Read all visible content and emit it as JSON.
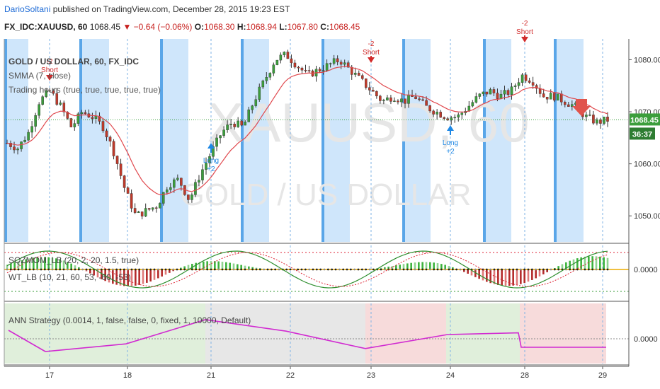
{
  "header": {
    "author": "DarioSoltani",
    "published": "published on TradingView.com, December 28, 2015 19:23 EST",
    "symbol": "FX_IDC:XAUUSD, 60",
    "last": "1068.45",
    "change": "−0.64 (−0.06%)",
    "o_label": "O:",
    "o": "1068.30",
    "h_label": "H:",
    "h": "1068.94",
    "l_label": "L:",
    "l": "1067.80",
    "c_label": "C:",
    "c": "1068.45"
  },
  "watermark": {
    "symbol": "XAUUSD, 60",
    "name": "GOLD / US DOLLAR"
  },
  "colors": {
    "up": "#3c9e3c",
    "down": "#c03a2b",
    "smma": "#e0484d",
    "session": "#cfe6fb",
    "session_edge": "#5aa6e8",
    "ann_line": "#d12bd1",
    "short": "#d12a2a",
    "long": "#1e88e5"
  },
  "chart_data": [
    {
      "type": "candlestick",
      "title": "GOLD / US DOLLAR, 60, FX_IDC",
      "legend": [
        "SMMA (7, close)",
        "Trading hours (true, true, true, true, true)"
      ],
      "price_tag": "1068.45",
      "timer_tag": "36:37",
      "x_ticks": [
        "17",
        "18",
        "21",
        "22",
        "23",
        "24",
        "28",
        "29"
      ],
      "y_ticks": [
        "1080.00",
        "1070.00",
        "1060.00",
        "1050.00"
      ],
      "ylim": [
        1045,
        1084
      ],
      "ohlc_path": [
        1064,
        1063,
        1066,
        1072,
        1074,
        1071,
        1067,
        1070,
        1069,
        1067,
        1062,
        1055,
        1050,
        1051,
        1052,
        1056,
        1057,
        1053,
        1058,
        1062,
        1066,
        1068,
        1067,
        1072,
        1076,
        1080,
        1081,
        1079,
        1077,
        1078,
        1079,
        1080,
        1078,
        1076,
        1074,
        1072,
        1073,
        1072,
        1073,
        1071,
        1070,
        1069,
        1069,
        1071,
        1073,
        1074,
        1073,
        1074,
        1077,
        1076,
        1073,
        1073,
        1072,
        1071,
        1069,
        1068,
        1068.45
      ],
      "signals": [
        {
          "label": "-2",
          "text": "Short"
        },
        {
          "label": "Long",
          "text": "+2"
        },
        {
          "label": "-2",
          "text": "Short"
        },
        {
          "label": "Long",
          "text": "+2"
        },
        {
          "label": "-2",
          "text": "Short"
        }
      ]
    },
    {
      "type": "histogram",
      "legend": [
        "SQZMOM_LB (20, 2, 20, 1.5, true)",
        "WT_LB (10, 21, 60, 53, -60, -53)"
      ],
      "y_ticks": [
        "0.0000"
      ]
    },
    {
      "type": "line",
      "legend": [
        "ANN Strategy (0.0014, 1, false, false, 0, fixed, 1, 10000, Default)"
      ],
      "y_ticks": [
        "0.0000"
      ],
      "step_values": [
        2,
        -3,
        -3,
        -1.2,
        -1.2,
        4.5,
        4.5,
        1.8,
        1.8,
        -2.3,
        -2.3,
        1,
        1,
        1.4,
        -2,
        -2
      ]
    }
  ]
}
